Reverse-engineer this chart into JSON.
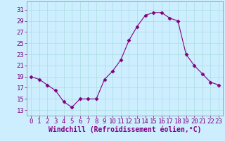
{
  "x": [
    0,
    1,
    2,
    3,
    4,
    5,
    6,
    7,
    8,
    9,
    10,
    11,
    12,
    13,
    14,
    15,
    16,
    17,
    18,
    19,
    20,
    21,
    22,
    23
  ],
  "y": [
    19,
    18.5,
    17.5,
    16.5,
    14.5,
    13.5,
    15,
    15,
    15,
    18.5,
    20,
    22,
    25.5,
    28,
    30,
    30.5,
    30.5,
    29.5,
    29,
    23,
    21,
    19.5,
    18,
    17.5
  ],
  "line_color": "#800080",
  "marker": "D",
  "marker_size": 2.5,
  "bg_color": "#cceeff",
  "grid_color": "#aadddd",
  "xlabel": "Windchill (Refroidissement éolien,°C)",
  "xlabel_color": "#800080",
  "xlabel_fontsize": 7,
  "tick_color": "#800080",
  "tick_fontsize": 6.5,
  "yticks": [
    13,
    15,
    17,
    19,
    21,
    23,
    25,
    27,
    29,
    31
  ],
  "xticks": [
    0,
    1,
    2,
    3,
    4,
    5,
    6,
    7,
    8,
    9,
    10,
    11,
    12,
    13,
    14,
    15,
    16,
    17,
    18,
    19,
    20,
    21,
    22,
    23
  ],
  "ylim": [
    12.0,
    32.5
  ],
  "xlim": [
    -0.5,
    23.5
  ]
}
